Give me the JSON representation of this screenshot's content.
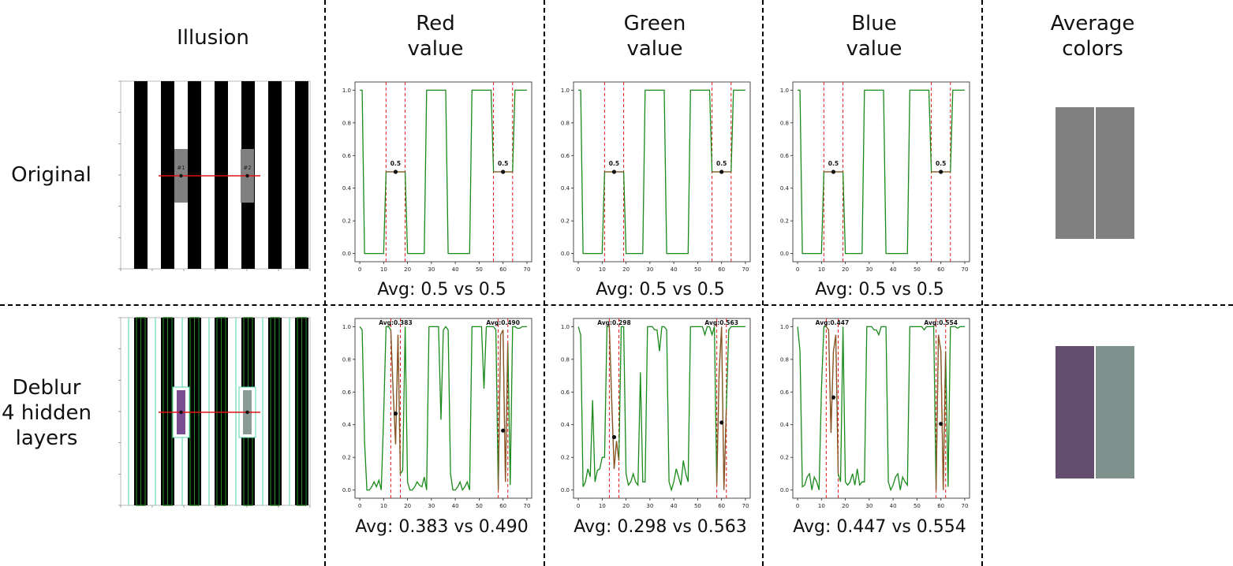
{
  "headers": {
    "illusion": "Illusion",
    "red": "Red\nvalue",
    "green": "Green\nvalue",
    "blue": "Blue\nvalue",
    "average": "Average\ncolors"
  },
  "row_labels": {
    "original": "Original",
    "deblur": "Deblur\n4 hidden\nlayers"
  },
  "illusion_markers": {
    "first": "#1",
    "second": "#2"
  },
  "colors": {
    "line": "#1a8a1a",
    "vline": "#e21b1b",
    "highlight": "#c0392b",
    "orig_left": "#808080",
    "orig_right": "#808080",
    "deblur_left": "#624d6f",
    "deblur_right": "#7e918c"
  },
  "chart_data": [
    {
      "id": "orig-red",
      "type": "line",
      "row": "original",
      "channel": "red",
      "xlim": [
        -2,
        72
      ],
      "ylim": [
        -0.05,
        1.05
      ],
      "xticks": [
        0,
        10,
        20,
        30,
        40,
        50,
        60,
        70
      ],
      "yticks": [
        0.0,
        0.2,
        0.4,
        0.6,
        0.8,
        1.0
      ],
      "x": [
        0,
        1,
        2,
        3,
        4,
        5,
        6,
        7,
        8,
        9,
        10,
        11,
        12,
        13,
        14,
        15,
        16,
        17,
        18,
        19,
        20,
        21,
        22,
        23,
        24,
        25,
        26,
        27,
        28,
        29,
        30,
        31,
        32,
        33,
        34,
        35,
        36,
        37,
        38,
        39,
        40,
        41,
        42,
        43,
        44,
        45,
        46,
        47,
        48,
        49,
        50,
        51,
        52,
        53,
        54,
        55,
        56,
        57,
        58,
        59,
        60,
        61,
        62,
        63,
        64,
        65,
        66,
        67,
        68,
        69,
        70
      ],
      "y": [
        1,
        1,
        0,
        0,
        0,
        0,
        0,
        0,
        0,
        0,
        0,
        0.5,
        0.5,
        0.5,
        0.5,
        0.5,
        0.5,
        0.5,
        0.5,
        0.5,
        0,
        0,
        0,
        0,
        0,
        0,
        0,
        0,
        1,
        1,
        1,
        1,
        1,
        1,
        1,
        1,
        1,
        0,
        0,
        0,
        0,
        0,
        0,
        0,
        0,
        0,
        0,
        1,
        1,
        1,
        1,
        1,
        1,
        1,
        1,
        1,
        0.5,
        0.5,
        0.5,
        0.5,
        0.5,
        0.5,
        0.5,
        0.5,
        0.5,
        1,
        1,
        1,
        1,
        1,
        1
      ],
      "regions": [
        [
          11,
          19
        ],
        [
          56,
          64
        ]
      ],
      "points": [
        {
          "x": 15,
          "y": 0.5
        },
        {
          "x": 60,
          "y": 0.5
        }
      ],
      "labels": [
        "0.5",
        "0.5"
      ],
      "avg_text": "Avg: 0.5 vs 0.5"
    },
    {
      "id": "orig-green",
      "type": "line",
      "row": "original",
      "channel": "green",
      "xlim": [
        -2,
        72
      ],
      "ylim": [
        -0.05,
        1.05
      ],
      "xticks": [
        0,
        10,
        20,
        30,
        40,
        50,
        60,
        70
      ],
      "yticks": [
        0.0,
        0.2,
        0.4,
        0.6,
        0.8,
        1.0
      ],
      "x": [
        0,
        1,
        2,
        3,
        4,
        5,
        6,
        7,
        8,
        9,
        10,
        11,
        12,
        13,
        14,
        15,
        16,
        17,
        18,
        19,
        20,
        21,
        22,
        23,
        24,
        25,
        26,
        27,
        28,
        29,
        30,
        31,
        32,
        33,
        34,
        35,
        36,
        37,
        38,
        39,
        40,
        41,
        42,
        43,
        44,
        45,
        46,
        47,
        48,
        49,
        50,
        51,
        52,
        53,
        54,
        55,
        56,
        57,
        58,
        59,
        60,
        61,
        62,
        63,
        64,
        65,
        66,
        67,
        68,
        69,
        70
      ],
      "y": [
        1,
        1,
        0,
        0,
        0,
        0,
        0,
        0,
        0,
        0,
        0,
        0.5,
        0.5,
        0.5,
        0.5,
        0.5,
        0.5,
        0.5,
        0.5,
        0.5,
        0,
        0,
        0,
        0,
        0,
        0,
        0,
        0,
        1,
        1,
        1,
        1,
        1,
        1,
        1,
        1,
        1,
        0,
        0,
        0,
        0,
        0,
        0,
        0,
        0,
        0,
        0,
        1,
        1,
        1,
        1,
        1,
        1,
        1,
        1,
        1,
        0.5,
        0.5,
        0.5,
        0.5,
        0.5,
        0.5,
        0.5,
        0.5,
        0.5,
        1,
        1,
        1,
        1,
        1,
        1
      ],
      "regions": [
        [
          11,
          19
        ],
        [
          56,
          64
        ]
      ],
      "points": [
        {
          "x": 15,
          "y": 0.5
        },
        {
          "x": 60,
          "y": 0.5
        }
      ],
      "labels": [
        "0.5",
        "0.5"
      ],
      "avg_text": "Avg: 0.5 vs 0.5"
    },
    {
      "id": "orig-blue",
      "type": "line",
      "row": "original",
      "channel": "blue",
      "xlim": [
        -2,
        72
      ],
      "ylim": [
        -0.05,
        1.05
      ],
      "xticks": [
        0,
        10,
        20,
        30,
        40,
        50,
        60,
        70
      ],
      "yticks": [
        0.0,
        0.2,
        0.4,
        0.6,
        0.8,
        1.0
      ],
      "x": [
        0,
        1,
        2,
        3,
        4,
        5,
        6,
        7,
        8,
        9,
        10,
        11,
        12,
        13,
        14,
        15,
        16,
        17,
        18,
        19,
        20,
        21,
        22,
        23,
        24,
        25,
        26,
        27,
        28,
        29,
        30,
        31,
        32,
        33,
        34,
        35,
        36,
        37,
        38,
        39,
        40,
        41,
        42,
        43,
        44,
        45,
        46,
        47,
        48,
        49,
        50,
        51,
        52,
        53,
        54,
        55,
        56,
        57,
        58,
        59,
        60,
        61,
        62,
        63,
        64,
        65,
        66,
        67,
        68,
        69,
        70
      ],
      "y": [
        1,
        1,
        0,
        0,
        0,
        0,
        0,
        0,
        0,
        0,
        0,
        0.5,
        0.5,
        0.5,
        0.5,
        0.5,
        0.5,
        0.5,
        0.5,
        0.5,
        0,
        0,
        0,
        0,
        0,
        0,
        0,
        0,
        1,
        1,
        1,
        1,
        1,
        1,
        1,
        1,
        1,
        0,
        0,
        0,
        0,
        0,
        0,
        0,
        0,
        0,
        0,
        1,
        1,
        1,
        1,
        1,
        1,
        1,
        1,
        1,
        0.5,
        0.5,
        0.5,
        0.5,
        0.5,
        0.5,
        0.5,
        0.5,
        0.5,
        1,
        1,
        1,
        1,
        1,
        1
      ],
      "regions": [
        [
          11,
          19
        ],
        [
          56,
          64
        ]
      ],
      "points": [
        {
          "x": 15,
          "y": 0.5
        },
        {
          "x": 60,
          "y": 0.5
        }
      ],
      "labels": [
        "0.5",
        "0.5"
      ],
      "avg_text": "Avg: 0.5 vs 0.5"
    },
    {
      "id": "deblur-red",
      "type": "line",
      "row": "deblur",
      "channel": "red",
      "xlim": [
        -2,
        72
      ],
      "ylim": [
        -0.05,
        1.05
      ],
      "xticks": [
        0,
        10,
        20,
        30,
        40,
        50,
        60,
        70
      ],
      "yticks": [
        0.0,
        0.2,
        0.4,
        0.6,
        0.8,
        1.0
      ],
      "x": [
        0,
        1,
        2,
        3,
        4,
        5,
        6,
        7,
        8,
        9,
        10,
        11,
        12,
        13,
        14,
        15,
        16,
        17,
        18,
        19,
        20,
        21,
        22,
        23,
        24,
        25,
        26,
        27,
        28,
        29,
        30,
        31,
        32,
        33,
        34,
        35,
        36,
        37,
        38,
        39,
        40,
        41,
        42,
        43,
        44,
        45,
        46,
        47,
        48,
        49,
        50,
        51,
        52,
        53,
        54,
        55,
        56,
        57,
        58,
        59,
        60,
        61,
        62,
        63,
        64,
        65,
        66,
        67,
        68,
        69,
        70
      ],
      "y": [
        1,
        0.98,
        0.3,
        0,
        0,
        0.02,
        0.05,
        0.02,
        0.06,
        0,
        0.45,
        1,
        1,
        0.98,
        0.6,
        0.28,
        0.95,
        0.1,
        0.12,
        1,
        0.05,
        0,
        0,
        0.02,
        0.05,
        0.03,
        0.02,
        0.08,
        0,
        1,
        1,
        1,
        1,
        1,
        0.43,
        0.98,
        1,
        0.98,
        0.1,
        0,
        0,
        0.02,
        0.05,
        0,
        0.02,
        0.05,
        0,
        1,
        1,
        1,
        1,
        1,
        0.62,
        1,
        1,
        1,
        1,
        0.98,
        0,
        0.95,
        0.98,
        0.05,
        0.9,
        0.03,
        1,
        1,
        0.99,
        0.99,
        1,
        1,
        1
      ],
      "regions": [
        [
          13,
          17
        ],
        [
          58,
          62
        ]
      ],
      "points": [
        {
          "x": 15,
          "y": 0.468
        },
        {
          "x": 60,
          "y": 0.364
        }
      ],
      "labels": [
        "Avg:0.383",
        "Avg:0.490"
      ],
      "avg_text": "Avg: 0.383 vs 0.490"
    },
    {
      "id": "deblur-green",
      "type": "line",
      "row": "deblur",
      "channel": "green",
      "xlim": [
        -2,
        72
      ],
      "ylim": [
        -0.05,
        1.05
      ],
      "xticks": [
        0,
        10,
        20,
        30,
        40,
        50,
        60,
        70
      ],
      "yticks": [
        0.0,
        0.2,
        0.4,
        0.6,
        0.8,
        1.0
      ],
      "x": [
        0,
        1,
        2,
        3,
        4,
        5,
        6,
        7,
        8,
        9,
        10,
        11,
        12,
        13,
        14,
        15,
        16,
        17,
        18,
        19,
        20,
        21,
        22,
        23,
        24,
        25,
        26,
        27,
        28,
        29,
        30,
        31,
        32,
        33,
        34,
        35,
        36,
        37,
        38,
        39,
        40,
        41,
        42,
        43,
        44,
        45,
        46,
        47,
        48,
        49,
        50,
        51,
        52,
        53,
        54,
        55,
        56,
        57,
        58,
        59,
        60,
        61,
        62,
        63,
        64,
        65,
        66,
        67,
        68,
        69,
        70
      ],
      "y": [
        1,
        0.95,
        0.02,
        0.05,
        0.13,
        0.08,
        0.55,
        0.05,
        0.12,
        0.13,
        0.2,
        0.2,
        1,
        1,
        0.55,
        0.13,
        0.3,
        0.18,
        1,
        1,
        0.1,
        0.03,
        0.05,
        0.1,
        0.05,
        0.03,
        0.72,
        0.05,
        0.05,
        1,
        1,
        1,
        0.98,
        0.98,
        0.85,
        1,
        1,
        0.98,
        0.05,
        0,
        0.05,
        0.13,
        0.08,
        0.03,
        0.18,
        0.1,
        0.05,
        1,
        1,
        1,
        1,
        1,
        1,
        0.95,
        1,
        1,
        0.95,
        1,
        0.03,
        0.72,
        1,
        0,
        0.5,
        0.98,
        1,
        1,
        1,
        1,
        1,
        1,
        1
      ],
      "regions": [
        [
          13,
          17
        ],
        [
          58,
          62
        ]
      ],
      "points": [
        {
          "x": 15,
          "y": 0.324
        },
        {
          "x": 60,
          "y": 0.413
        }
      ],
      "labels": [
        "Avg:0.298",
        "Avg:0.563"
      ],
      "avg_text": "Avg: 0.298 vs 0.563"
    },
    {
      "id": "deblur-blue",
      "type": "line",
      "row": "deblur",
      "channel": "blue",
      "xlim": [
        -2,
        72
      ],
      "ylim": [
        -0.05,
        1.05
      ],
      "xticks": [
        0,
        10,
        20,
        30,
        40,
        50,
        60,
        70
      ],
      "yticks": [
        0.0,
        0.2,
        0.4,
        0.6,
        0.8,
        1.0
      ],
      "x": [
        0,
        1,
        2,
        3,
        4,
        5,
        6,
        7,
        8,
        9,
        10,
        11,
        12,
        13,
        14,
        15,
        16,
        17,
        18,
        19,
        20,
        21,
        22,
        23,
        24,
        25,
        26,
        27,
        28,
        29,
        30,
        31,
        32,
        33,
        34,
        35,
        36,
        37,
        38,
        39,
        40,
        41,
        42,
        43,
        44,
        45,
        46,
        47,
        48,
        49,
        50,
        51,
        52,
        53,
        54,
        55,
        56,
        57,
        58,
        59,
        60,
        61,
        62,
        63,
        64,
        65,
        66,
        67,
        68,
        69,
        70
      ],
      "y": [
        1,
        0.85,
        0.02,
        0.03,
        0.08,
        0.1,
        0,
        0.08,
        0.05,
        0,
        0.62,
        1,
        1,
        0.98,
        0.35,
        0.85,
        0.95,
        0.1,
        0.05,
        1,
        0.05,
        0.03,
        0.05,
        0.1,
        0.03,
        0.13,
        0.03,
        0.05,
        0.05,
        1,
        1,
        1,
        0.98,
        0.98,
        0.95,
        1,
        1,
        1,
        0.05,
        0,
        0.03,
        0.08,
        0.1,
        0,
        0.08,
        0.05,
        0.03,
        1,
        1,
        1,
        1,
        1,
        1,
        0.98,
        1,
        1,
        1,
        1,
        0,
        0.95,
        0.85,
        0,
        0.85,
        0.02,
        1,
        1,
        1,
        0.99,
        1,
        1,
        1
      ],
      "regions": [
        [
          12,
          17
        ],
        [
          58,
          62
        ]
      ],
      "points": [
        {
          "x": 15,
          "y": 0.567
        },
        {
          "x": 60,
          "y": 0.405
        }
      ],
      "labels": [
        "Avg:0.447",
        "Avg:0.554"
      ],
      "avg_text": "Avg: 0.447 vs 0.554"
    }
  ]
}
